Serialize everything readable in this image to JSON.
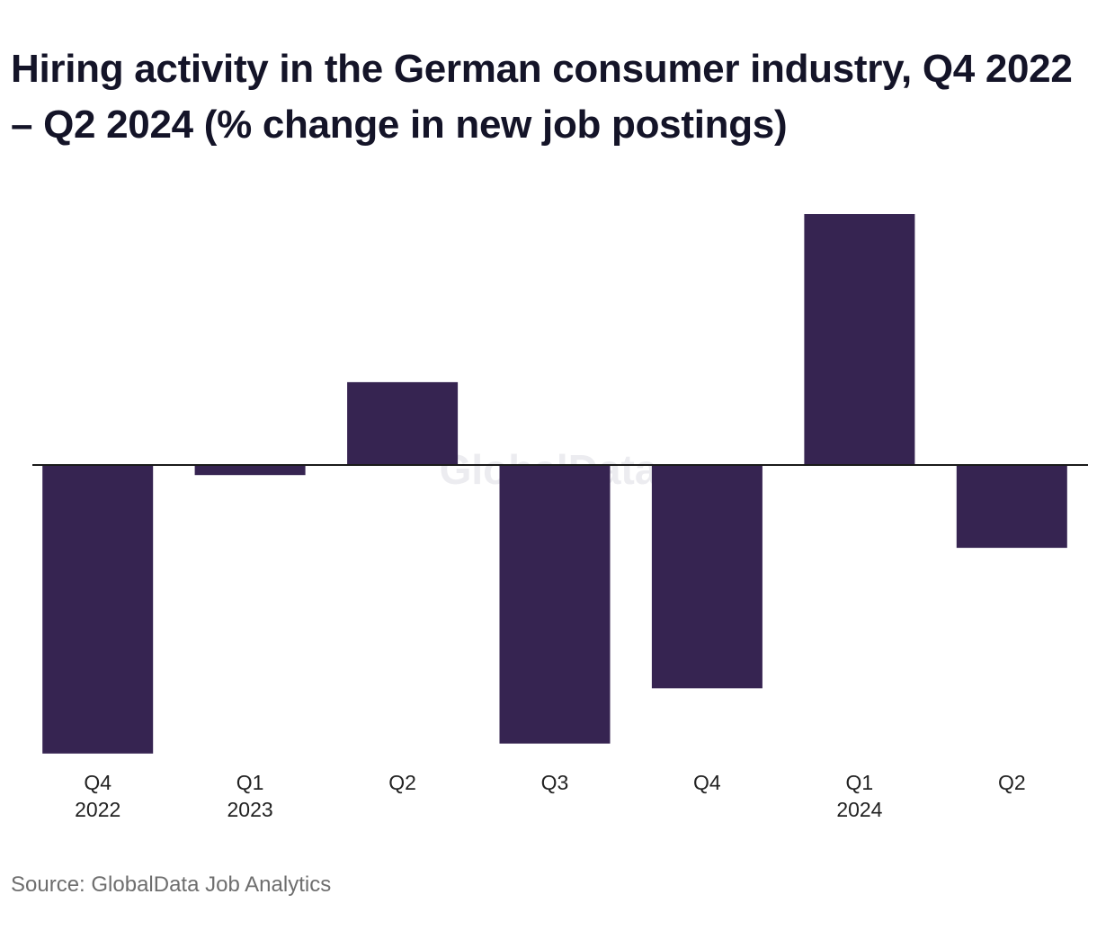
{
  "chart_data": {
    "type": "bar",
    "title": "Hiring activity in the German consumer industry, Q4 2022 – Q2 2024 (% change in new job postings)",
    "xlabel": "",
    "ylabel": "",
    "categories": [
      "Q4 2022",
      "Q1 2023",
      "Q2 2023",
      "Q3 2023",
      "Q4 2023",
      "Q1 2024",
      "Q2 2024"
    ],
    "tick_labels": [
      {
        "quarter": "Q4",
        "year": "2022"
      },
      {
        "quarter": "Q1",
        "year": "2023"
      },
      {
        "quarter": "Q2",
        "year": ""
      },
      {
        "quarter": "Q3",
        "year": ""
      },
      {
        "quarter": "Q4",
        "year": ""
      },
      {
        "quarter": "Q1",
        "year": "2024"
      },
      {
        "quarter": "Q2",
        "year": ""
      }
    ],
    "values": [
      -11.5,
      -0.4,
      3.3,
      -11.1,
      -8.9,
      10.0,
      -3.3
    ],
    "ylim": [
      -11.5,
      10.0
    ],
    "grid": false,
    "legend": "none",
    "source": "Source: GlobalData Job Analytics",
    "watermark": "GlobalData",
    "colors": {
      "bar": "#362451",
      "axis": "#1a1a1a",
      "title": "#141428",
      "source": "#6e6e6e"
    }
  }
}
